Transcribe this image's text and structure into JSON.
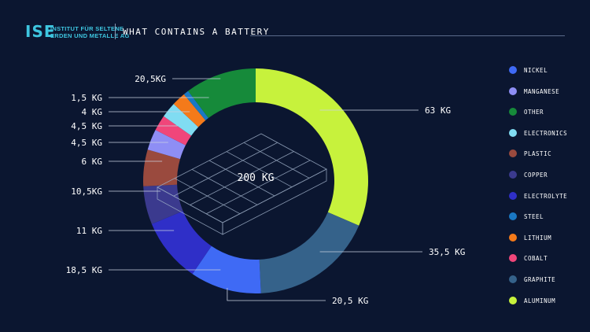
{
  "header": {
    "logo_mark": "ISE",
    "logo_line1": "INSTITUT FÜR SELTENE",
    "logo_line2": "ERDEN UND METALLE AG",
    "title": "WHAT CONTAINS A BATTERY"
  },
  "chart_data": {
    "type": "donut",
    "center_label": "200 KG",
    "unit": "kg",
    "total": 200,
    "legend_position": "right",
    "slices": [
      {
        "name": "ALUMINUM",
        "value": 63,
        "label": "63 KG",
        "color": "#c7f23c"
      },
      {
        "name": "GRAPHITE",
        "value": 35.5,
        "label": "35,5 KG",
        "color": "#35628a"
      },
      {
        "name": "NICKEL",
        "value": 20.5,
        "label": "20,5 KG",
        "color": "#3f6af5"
      },
      {
        "name": "ELECTROLYTE",
        "value": 18.5,
        "label": "18,5 KG",
        "color": "#2f2fc8"
      },
      {
        "name": "COPPER",
        "value": 11,
        "label": "11 KG",
        "color": "#3b3a8e"
      },
      {
        "name": "PLASTIC",
        "value": 10.5,
        "label": "10,5KG",
        "color": "#9a4a3e"
      },
      {
        "name": "MANGANESE",
        "value": 6,
        "label": "6 KG",
        "color": "#8e8ef5"
      },
      {
        "name": "COBALT",
        "value": 4.5,
        "label": "4,5 KG",
        "color": "#f0467a"
      },
      {
        "name": "ELECTRONICS",
        "value": 4.5,
        "label": "4,5 KG",
        "color": "#80dcf2"
      },
      {
        "name": "LITHIUM",
        "value": 4,
        "label": "4 KG",
        "color": "#f47a1a"
      },
      {
        "name": "STEEL",
        "value": 1.5,
        "label": "1,5 KG",
        "color": "#1a78c4"
      },
      {
        "name": "OTHER",
        "value": 20.5,
        "label": "20,5KG",
        "color": "#168a3a"
      }
    ],
    "legend": [
      {
        "name": "NICKEL",
        "color": "#3f6af5"
      },
      {
        "name": "MANGANESE",
        "color": "#8e8ef5"
      },
      {
        "name": "OTHER",
        "color": "#168a3a"
      },
      {
        "name": "ELECTRONICS",
        "color": "#80dcf2"
      },
      {
        "name": "PLASTIC",
        "color": "#9a4a3e"
      },
      {
        "name": "COPPER",
        "color": "#3b3a8e"
      },
      {
        "name": "ELECTROLYTE",
        "color": "#2f2fc8"
      },
      {
        "name": "STEEL",
        "color": "#1a78c4"
      },
      {
        "name": "LITHIUM",
        "color": "#f47a1a"
      },
      {
        "name": "COBALT",
        "color": "#f0467a"
      },
      {
        "name": "GRAPHITE",
        "color": "#35628a"
      },
      {
        "name": "ALUMINUM",
        "color": "#c7f23c"
      }
    ]
  }
}
